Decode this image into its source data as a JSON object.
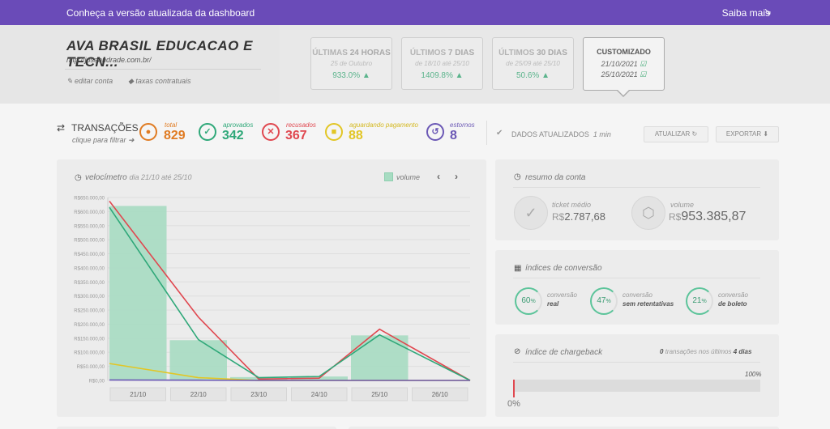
{
  "topbar": {
    "message": "Conheça a versão atualizada da dashboard",
    "more": "Saiba mais"
  },
  "company": {
    "name": "AVA BRASIL EDUCACAO E TECN...",
    "url": "http://joseandrade.com.br/",
    "edit": "editar conta",
    "fees": "taxas contratuais"
  },
  "periods": [
    {
      "title_a": "ÚLTIMAS ",
      "title_b": "24 HORAS",
      "date": "25 de Outubro",
      "pct": "933.0%"
    },
    {
      "title_a": "ÚLTIMOS ",
      "title_b": "7 DIAS",
      "date": "de 18/10 até 25/10",
      "pct": "1409.8%"
    },
    {
      "title_a": "ÚLTIMOS ",
      "title_b": "30 DIAS",
      "date": "de 25/09 até 25/10",
      "pct": "50.6%"
    }
  ],
  "custom": {
    "title": "CUSTOMIZADO",
    "from": "21/10/2021",
    "to": "25/10/2021"
  },
  "transactions": {
    "title": "TRANSAÇÕES",
    "subtitle": "clique para filtrar",
    "stats": [
      {
        "label": "total",
        "value": "829",
        "color": "#e07b22"
      },
      {
        "label": "aprovados",
        "value": "342",
        "color": "#2fa879"
      },
      {
        "label": "recusados",
        "value": "367",
        "color": "#e0474f"
      },
      {
        "label": "aguardando pagamento",
        "value": "88",
        "color": "#e2c625"
      },
      {
        "label": "estornos",
        "value": "8",
        "color": "#6b58b5"
      }
    ]
  },
  "updated": {
    "text": "DADOS ATUALIZADOS",
    "time": "1 min",
    "refresh": "ATUALIZAR",
    "export": "EXPORTAR"
  },
  "chart_panel": {
    "title": "velocímetro",
    "range": "dia 21/10 até 25/10",
    "legend": "volume"
  },
  "chart_data": {
    "type": "bar",
    "categories": [
      "21/10",
      "22/10",
      "23/10",
      "24/10",
      "25/10",
      "26/10"
    ],
    "y_ticks": [
      "R$650.000,00",
      "R$600.000,00",
      "R$550.000,00",
      "R$500.000,00",
      "R$450.000,00",
      "R$400.000,00",
      "R$350.000,00",
      "R$300.000,00",
      "R$250.000,00",
      "R$200.000,00",
      "R$150.000,00",
      "R$100.000,00",
      "R$50.000,00",
      "R$0,00"
    ],
    "ylim": [
      0,
      650000
    ],
    "series": [
      {
        "name": "volume",
        "kind": "bar",
        "color": "#a7dcc2",
        "values": [
          620000,
          143000,
          12000,
          14000,
          160000,
          0
        ]
      },
      {
        "kind": "line",
        "color": "#e0474f",
        "values": [
          637000,
          225000,
          5000,
          8000,
          182000,
          0
        ]
      },
      {
        "kind": "line",
        "color": "#2fa879",
        "values": [
          615000,
          145000,
          10000,
          14000,
          162000,
          0
        ]
      },
      {
        "kind": "line",
        "color": "#e2c625",
        "values": [
          60000,
          10000,
          0,
          0,
          0,
          0
        ]
      },
      {
        "kind": "line",
        "color": "#6b58b5",
        "values": [
          1500,
          800,
          0,
          0,
          0,
          0
        ]
      }
    ]
  },
  "summary": {
    "title": "resumo da conta",
    "ticket_label": "ticket médio",
    "ticket_cur": "R$",
    "ticket_val": "2.787,68",
    "volume_label": "volume",
    "volume_cur": "R$",
    "volume_val": "953.385,87"
  },
  "conversion": {
    "title": "índices de conversão",
    "items": [
      {
        "pct": "60",
        "sym": "%",
        "l1": "conversão",
        "l2": "real"
      },
      {
        "pct": "47",
        "sym": "%",
        "l1": "conversão",
        "l2": "sem retentativas"
      },
      {
        "pct": "21",
        "sym": "%",
        "l1": "conversão",
        "l2": "de boleto"
      }
    ]
  },
  "chargeback": {
    "title": "índice de chargeback",
    "count": "0",
    "mid": "transações nos últimos",
    "days": "4 dias",
    "max": "100%",
    "min": "0%"
  }
}
